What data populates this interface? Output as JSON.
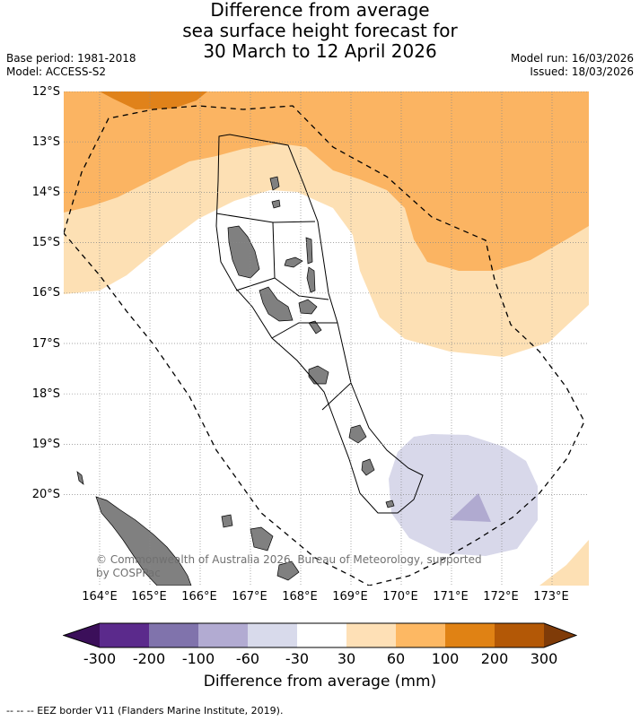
{
  "header": {
    "title_lines": [
      "Difference from average",
      "sea surface height forecast for",
      "30 March to 12 April 2026"
    ],
    "base_period": "Base period: 1981-2018",
    "model": "Model: ACCESS-S2",
    "model_run": "Model run: 16/03/2026",
    "issued": "Issued: 18/03/2026"
  },
  "map": {
    "lat_labels": [
      "12°S",
      "13°S",
      "14°S",
      "15°S",
      "16°S",
      "17°S",
      "18°S",
      "19°S",
      "20°S"
    ],
    "lon_labels": [
      "164°E",
      "165°E",
      "166°E",
      "167°E",
      "168°E",
      "169°E",
      "170°E",
      "171°E",
      "172°E",
      "173°E"
    ],
    "copyright_line1": "© Commonwealth of Australia 2026, Bureau of Meteorology, supported",
    "copyright_line2": "by COSPPac",
    "colors": {
      "anom_30_60": "#fde0b4",
      "anom_60_100": "#fbb462",
      "anom_100_200": "#e0821a",
      "anom_neg_30_60": "#d8d8ea",
      "anom_neg_60_100": "#b0aad0",
      "land": "#808080",
      "grid": "#888888"
    }
  },
  "colorbar": {
    "labels": [
      "-300",
      "-200",
      "-100",
      "-60",
      "-30",
      "30",
      "60",
      "100",
      "200",
      "300"
    ],
    "colors": [
      "#3b0f5a",
      "#5b2a8c",
      "#8073ac",
      "#b2abd2",
      "#d8daeb",
      "#ffffff",
      "#fee0b6",
      "#fdb863",
      "#e08214",
      "#b35806",
      "#7f3b08"
    ],
    "title": "Difference from average (mm)"
  },
  "footnote": "--  --  -- EEZ border V11 (Flanders Marine Institute, 2019)."
}
